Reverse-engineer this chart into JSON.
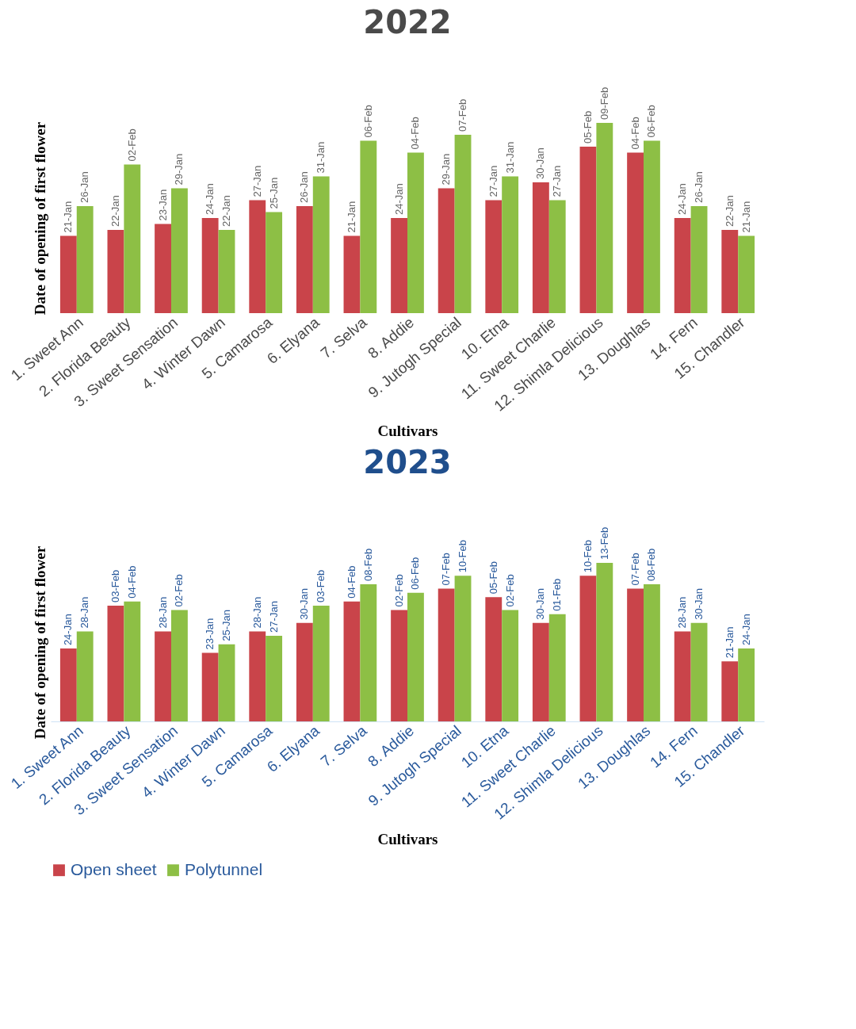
{
  "chart_data": [
    {
      "type": "bar",
      "title": "2022",
      "xlabel": "Cultivars",
      "ylabel": "Date of opening of first flower",
      "grid": false,
      "tick_labels": "x",
      "ylim": [
        8,
        40
      ],
      "categories": [
        "1. Sweet Ann",
        "2. Florida Beauty",
        "3. Sweet Sensation",
        "4. Winter Dawn",
        "5. Camarosa",
        "6. Elyana",
        "7. Selva",
        "8. Addie",
        "9. Jutogh Special",
        "10. Etna",
        "11. Sweet Charlie",
        "12. Shimla Delicious",
        "13. Doughlas",
        "14. Fern",
        "15. Chandler"
      ],
      "series": [
        {
          "color": "#c9444a",
          "values": [
            21,
            22,
            23,
            24,
            27,
            26,
            21,
            24,
            29,
            27,
            30,
            36,
            35,
            24,
            22
          ],
          "value_labels": [
            "21-Jan",
            "22-Jan",
            "23-Jan",
            "24-Jan",
            "27-Jan",
            "26-Jan",
            "21-Jan",
            "24-Jan",
            "29-Jan",
            "27-Jan",
            "30-Jan",
            "05-Feb",
            "04-Feb",
            "24-Jan",
            "22-Jan"
          ]
        },
        {
          "color": "#8dbf45",
          "values": [
            26,
            33,
            29,
            22,
            25,
            31,
            37,
            35,
            38,
            31,
            27,
            40,
            37,
            26,
            21
          ],
          "value_labels": [
            "26-Jan",
            "02-Feb",
            "29-Jan",
            "22-Jan",
            "25-Jan",
            "31-Jan",
            "06-Feb",
            "04-Feb",
            "07-Feb",
            "31-Jan",
            "27-Jan",
            "09-Feb",
            "06-Feb",
            "26-Jan",
            "21-Jan"
          ]
        }
      ]
    },
    {
      "type": "bar",
      "title": "2023",
      "xlabel": "Cultivars",
      "ylabel": "Date of opening of first flower",
      "grid": false,
      "legend": "bottom",
      "tick_labels": "x",
      "ylim": [
        7,
        44
      ],
      "categories": [
        "1. Sweet Ann",
        "2. Florida Beauty",
        "3. Sweet Sensation",
        "4. Winter Dawn",
        "5. Camarosa",
        "6. Elyana",
        "7. Selva",
        "8. Addie",
        "9. Jutogh Special",
        "10. Etna",
        "11. Sweet Charlie",
        "12. Shimla Delicious",
        "13. Doughlas",
        "14. Fern",
        "15. Chandler"
      ],
      "series": [
        {
          "name": "Open sheet",
          "color": "#c9444a",
          "values": [
            24,
            34,
            28,
            23,
            28,
            30,
            35,
            33,
            38,
            36,
            30,
            41,
            38,
            28,
            21
          ],
          "value_labels": [
            "24-Jan",
            "03-Feb",
            "28-Jan",
            "23-Jan",
            "28-Jan",
            "30-Jan",
            "04-Feb",
            "02-Feb",
            "07-Feb",
            "05-Feb",
            "30-Jan",
            "10-Feb",
            "07-Feb",
            "28-Jan",
            "21-Jan"
          ]
        },
        {
          "name": "Polytunnel",
          "color": "#8dbf45",
          "values": [
            28,
            35,
            33,
            25,
            27,
            34,
            39,
            37,
            41,
            33,
            32,
            44,
            39,
            30,
            24
          ],
          "value_labels": [
            "28-Jan",
            "04-Feb",
            "02-Feb",
            "25-Jan",
            "27-Jan",
            "03-Feb",
            "08-Feb",
            "06-Feb",
            "10-Feb",
            "02-Feb",
            "01-Feb",
            "13-Feb",
            "08-Feb",
            "30-Jan",
            "24-Jan"
          ]
        }
      ]
    }
  ]
}
